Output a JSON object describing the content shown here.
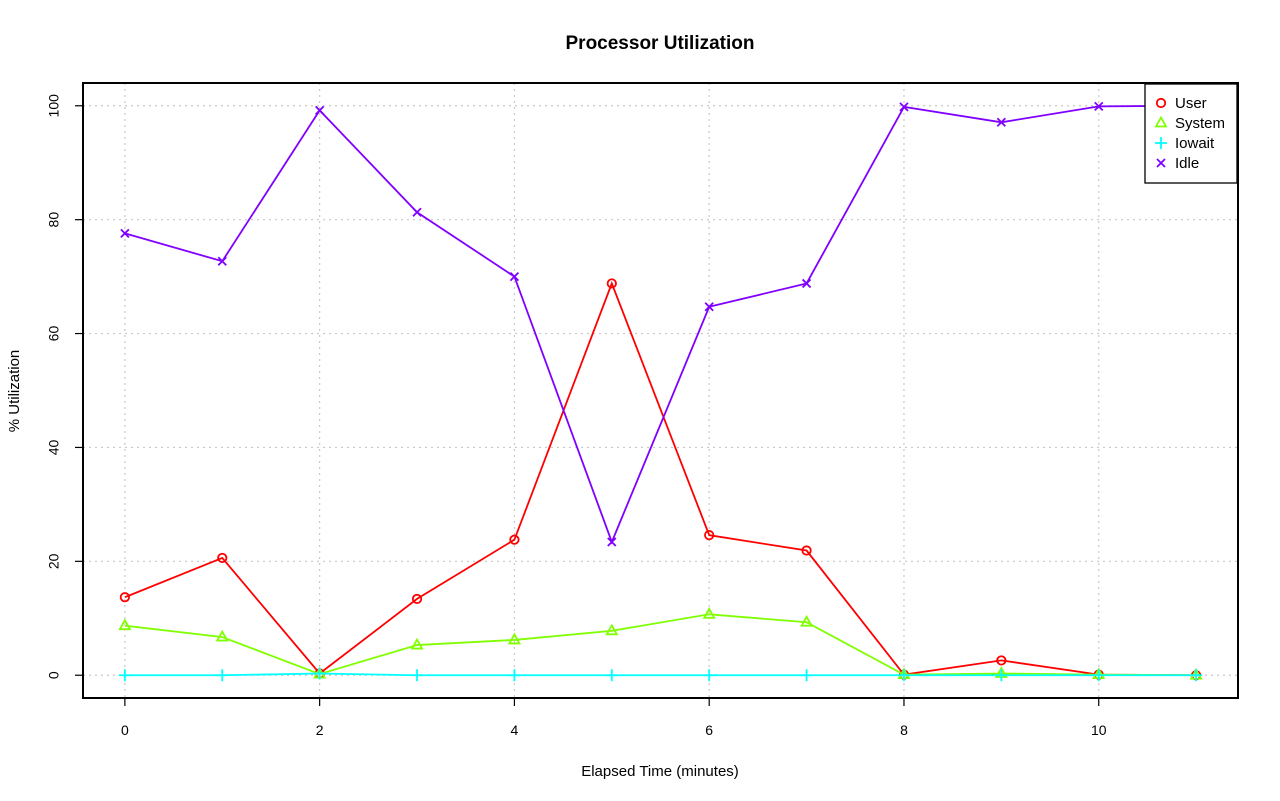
{
  "chart_data": {
    "type": "line",
    "title": "Processor Utilization",
    "xlabel": "Elapsed Time (minutes)",
    "ylabel": "% Utilization",
    "x": [
      0,
      1,
      2,
      3,
      4,
      5,
      6,
      7,
      8,
      9,
      10,
      11
    ],
    "xlim": [
      -0.43,
      11.43
    ],
    "ylim": [
      -4,
      104
    ],
    "x_ticks": [
      0,
      2,
      4,
      6,
      8,
      10
    ],
    "y_ticks": [
      0,
      20,
      40,
      60,
      80,
      100
    ],
    "grid": true,
    "legend_position": "top-right",
    "series": [
      {
        "name": "User",
        "color": "#ff0000",
        "marker": "circle",
        "values": [
          13.7,
          20.6,
          0.3,
          13.4,
          23.8,
          68.8,
          24.6,
          21.9,
          0.1,
          2.6,
          0.1,
          0.0
        ]
      },
      {
        "name": "System",
        "color": "#80ff00",
        "marker": "triangle",
        "values": [
          8.7,
          6.7,
          0.2,
          5.3,
          6.2,
          7.8,
          10.7,
          9.3,
          0.1,
          0.3,
          0.1,
          0.0
        ]
      },
      {
        "name": "Iowait",
        "color": "#00ffff",
        "marker": "plus",
        "values": [
          0.0,
          0.0,
          0.3,
          0.0,
          0.0,
          0.0,
          0.0,
          0.0,
          0.0,
          0.0,
          0.0,
          0.0
        ]
      },
      {
        "name": "Idle",
        "color": "#8000ff",
        "marker": "x",
        "values": [
          77.6,
          72.7,
          99.2,
          81.3,
          70.0,
          23.4,
          64.7,
          68.8,
          99.8,
          97.1,
          99.9,
          100.0
        ]
      }
    ]
  }
}
